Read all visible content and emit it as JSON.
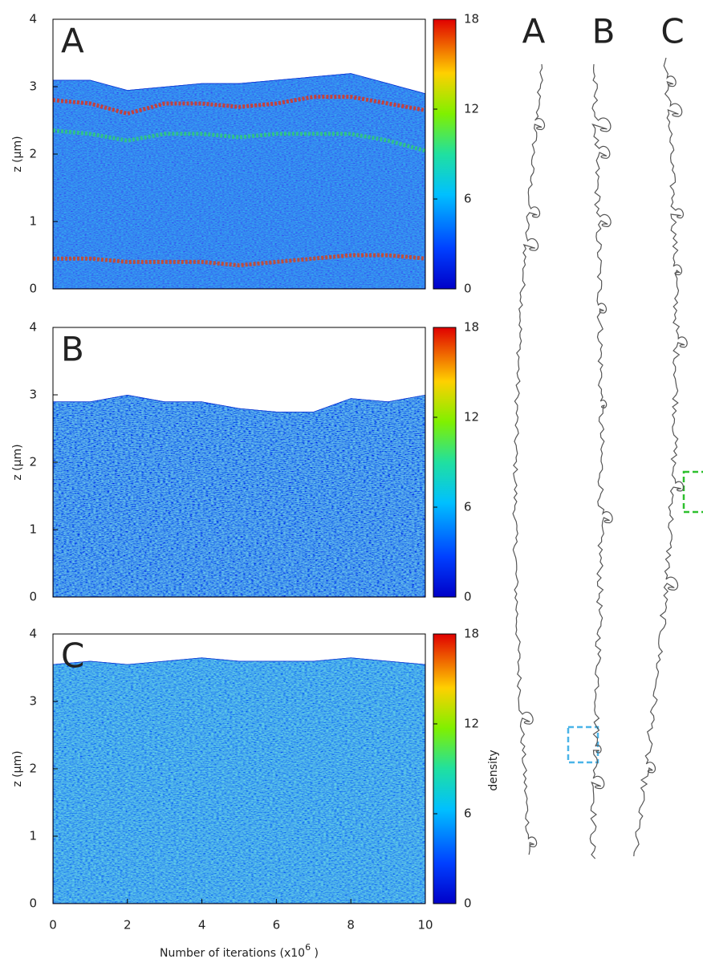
{
  "chart_data": [
    {
      "type": "heatmap",
      "panel_label": "A",
      "y_label": "z (μm)",
      "xlim": [
        0,
        10
      ],
      "ylim": [
        0,
        4
      ],
      "yticks": [
        0,
        1,
        2,
        3,
        4
      ],
      "clim": [
        0,
        18
      ],
      "cticks": [
        0,
        6,
        12,
        18
      ],
      "x": [
        0,
        1,
        2,
        3,
        4,
        5,
        6,
        7,
        8,
        9,
        10
      ],
      "top_edge": [
        3.1,
        3.1,
        2.95,
        3.0,
        3.05,
        3.05,
        3.1,
        3.15,
        3.2,
        3.05,
        2.9
      ],
      "bands": [
        {
          "color": "#e83010",
          "values": [
            2.8,
            2.75,
            2.6,
            2.75,
            2.75,
            2.7,
            2.75,
            2.85,
            2.85,
            2.75,
            2.65
          ]
        },
        {
          "color": "#30d070",
          "values": [
            2.35,
            2.3,
            2.2,
            2.3,
            2.3,
            2.25,
            2.3,
            2.3,
            2.3,
            2.2,
            2.05
          ]
        },
        {
          "color": "#e04010",
          "values": [
            0.45,
            0.45,
            0.4,
            0.4,
            0.4,
            0.35,
            0.4,
            0.45,
            0.5,
            0.5,
            0.45
          ]
        }
      ]
    },
    {
      "type": "heatmap",
      "panel_label": "B",
      "y_label": "z (μm)",
      "xlim": [
        0,
        10
      ],
      "ylim": [
        0,
        4
      ],
      "yticks": [
        0,
        1,
        2,
        3,
        4
      ],
      "clim": [
        0,
        18
      ],
      "cticks": [
        0,
        6,
        12,
        18
      ],
      "x": [
        0,
        1,
        2,
        3,
        4,
        5,
        6,
        7,
        8,
        9,
        10
      ],
      "top_edge": [
        2.9,
        2.9,
        3.0,
        2.9,
        2.9,
        2.8,
        2.75,
        2.75,
        2.95,
        2.9,
        3.0
      ]
    },
    {
      "type": "heatmap",
      "panel_label": "C",
      "y_label": "z (μm)",
      "xlim": [
        0,
        10
      ],
      "ylim": [
        0,
        4
      ],
      "yticks": [
        0,
        1,
        2,
        3,
        4
      ],
      "xticks": [
        0,
        2,
        4,
        6,
        8,
        10
      ],
      "x_label": {
        "text": "Number of iterations (x10",
        "superscript": "6",
        "suffix": " )"
      },
      "clim": [
        0,
        18
      ],
      "cticks": [
        0,
        6,
        12,
        18
      ],
      "colorbar_label": "density",
      "x": [
        0,
        1,
        2,
        3,
        4,
        5,
        6,
        7,
        8,
        9,
        10
      ],
      "top_edge": [
        3.55,
        3.6,
        3.55,
        3.6,
        3.65,
        3.6,
        3.6,
        3.6,
        3.65,
        3.6,
        3.55
      ]
    }
  ],
  "trace_labels": [
    "A",
    "B",
    "C"
  ]
}
